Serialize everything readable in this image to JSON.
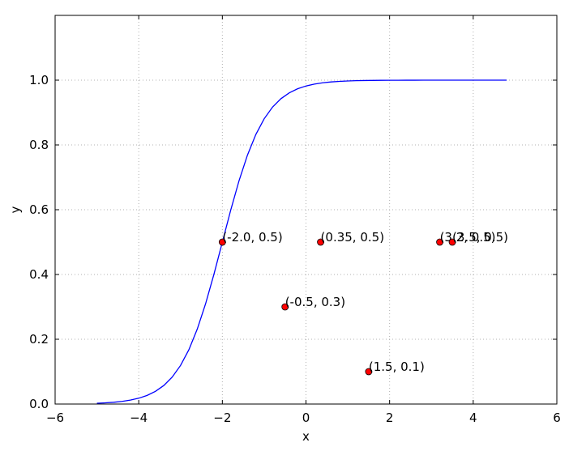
{
  "chart_data": {
    "type": "scatter",
    "title": "",
    "xlabel": "x",
    "ylabel": "y",
    "xlim": [
      -6,
      6
    ],
    "ylim": [
      0,
      1.2
    ],
    "grid": true,
    "xticks": [
      -6,
      -4,
      -2,
      0,
      2,
      4,
      6
    ],
    "xtick_labels": [
      "−6",
      "−4",
      "−2",
      "0",
      "2",
      "4",
      "6"
    ],
    "yticks": [
      0.0,
      0.2,
      0.4,
      0.6,
      0.8,
      1.0
    ],
    "ytick_labels": [
      "0.0",
      "0.2",
      "0.4",
      "0.6",
      "0.8",
      "1.0"
    ],
    "curve": {
      "function": "sigmoid",
      "center": -2,
      "steepness": 2,
      "x_start": -5,
      "x_end": 4.8,
      "color": "#0000ff"
    },
    "points": [
      {
        "x": -2.0,
        "y": 0.5,
        "label": "(-2.0, 0.5)"
      },
      {
        "x": 0.35,
        "y": 0.5,
        "label": "(0.35, 0.5)"
      },
      {
        "x": 3.2,
        "y": 0.5,
        "label": "(3.2, 0.5)"
      },
      {
        "x": 3.5,
        "y": 0.5,
        "label": "(3.5, 0.5)"
      },
      {
        "x": -0.5,
        "y": 0.3,
        "label": "(-0.5, 0.3)"
      },
      {
        "x": 1.5,
        "y": 0.1,
        "label": "(1.5, 0.1)"
      }
    ],
    "point_color": "#ff0000",
    "grid_color": "#b0b0b0"
  }
}
